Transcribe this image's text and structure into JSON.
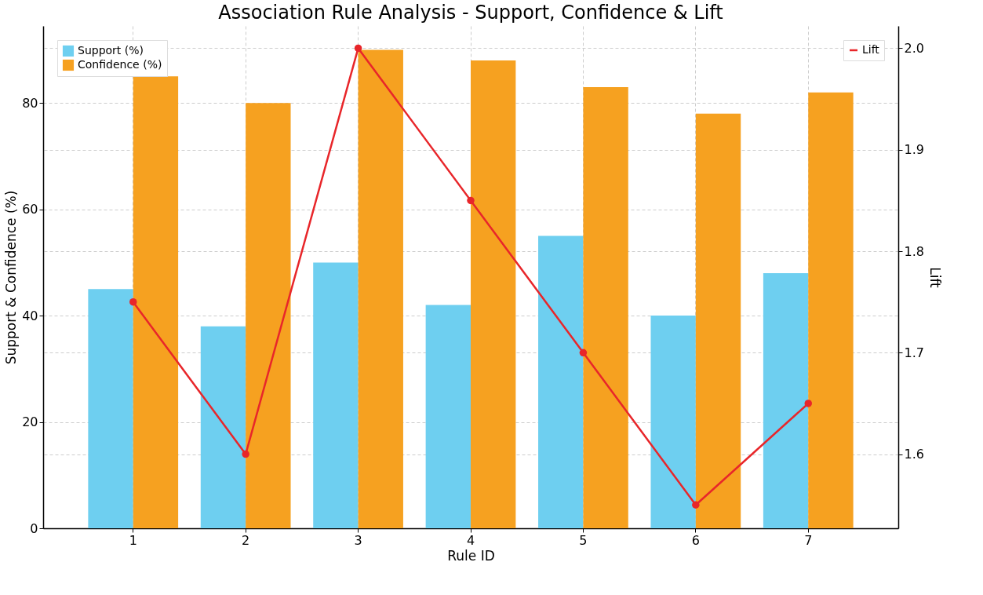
{
  "chart_data": {
    "type": "bar",
    "title": "Association Rule Analysis - Support, Confidence & Lift",
    "xlabel": "Rule ID",
    "ylabel": "Support & Confidence (%)",
    "y2label": "Lift",
    "categories": [
      "1",
      "2",
      "3",
      "4",
      "5",
      "6",
      "7"
    ],
    "series": [
      {
        "name": "Support (%)",
        "color": "#6ecff0",
        "values": [
          45,
          38,
          50,
          42,
          55,
          40,
          48
        ]
      },
      {
        "name": "Confidence (%)",
        "color": "#f6a120",
        "values": [
          85,
          80,
          90,
          88,
          83,
          78,
          82
        ]
      },
      {
        "name": "Lift",
        "type": "line",
        "axis": "y2",
        "color": "#e8262a",
        "marker": "circle",
        "values": [
          1.75,
          1.6,
          2.0,
          1.85,
          1.7,
          1.55,
          1.65
        ]
      }
    ],
    "ylim": [
      0,
      94.5
    ],
    "yticks": [
      0,
      20,
      40,
      60,
      80
    ],
    "y2lim": [
      1.527,
      2.022
    ],
    "y2ticks": [
      1.6,
      1.7,
      1.8,
      1.9,
      {
        "value": 2.0,
        "label": "2.0"
      }
    ],
    "grid": true,
    "legend": "top left",
    "line_style": "solid"
  }
}
